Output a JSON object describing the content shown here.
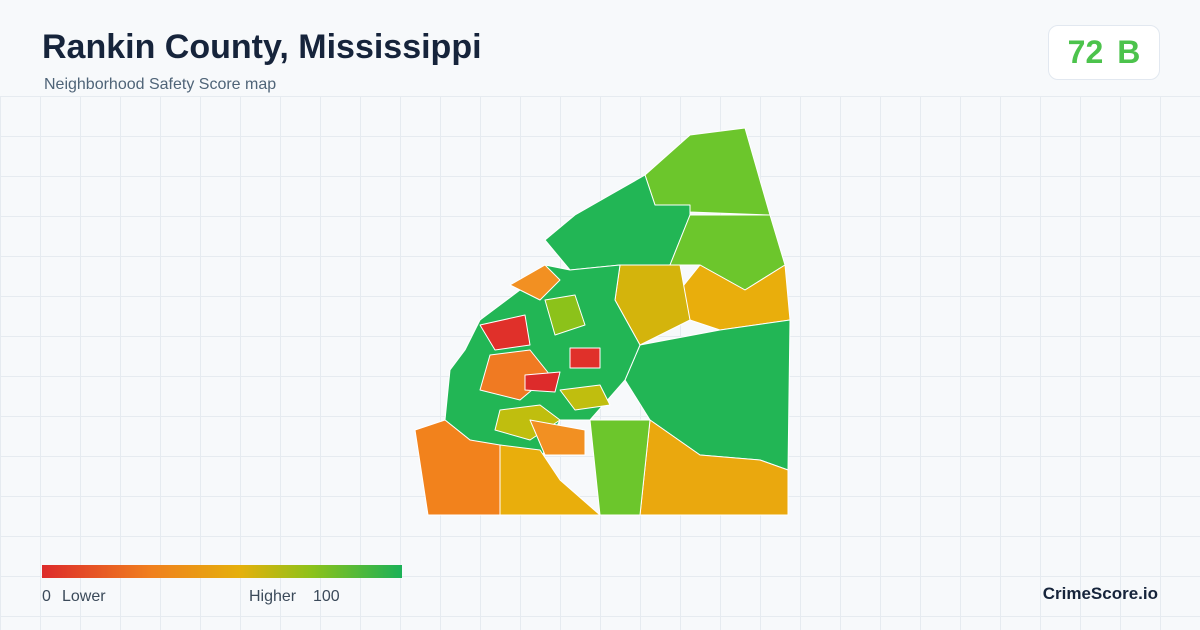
{
  "header": {
    "title": "Rankin County, Mississippi",
    "subtitle": "Neighborhood Safety Score map"
  },
  "score": {
    "value": 72,
    "grade": "B"
  },
  "legend": {
    "min": 0,
    "min_label": "Lower",
    "max_label": "Higher",
    "max": 100
  },
  "brand": "CrimeScore.io"
}
